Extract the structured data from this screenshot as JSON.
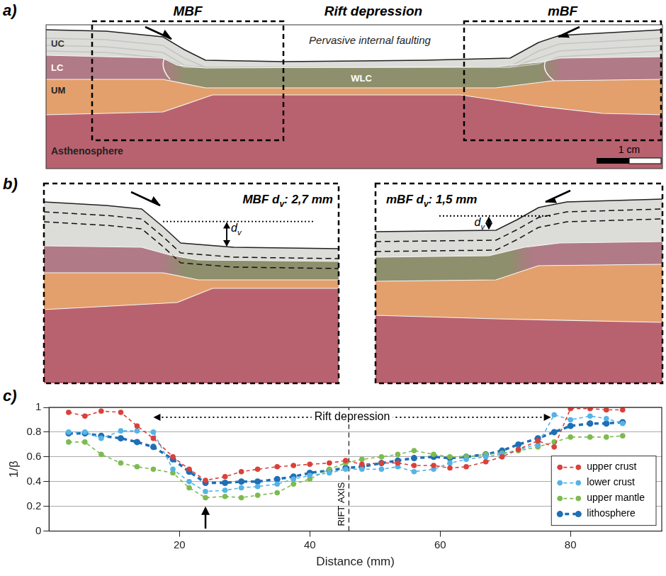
{
  "panel_a": {
    "label": "a)",
    "headers": [
      "MBF",
      "Rift depression",
      "mBF"
    ],
    "layers": {
      "upper_crust": "UC",
      "lower_crust": "LC",
      "upper_mantle": "UM",
      "weak_lower_crust": "WLC",
      "asthenosphere": "Asthenosphere"
    },
    "annotation": "Pervasive internal faulting",
    "scale_bar": "1 cm"
  },
  "panel_b": {
    "label": "b)",
    "insets": [
      {
        "title": [
          "MBF d",
          "v",
          ": 2,7 mm"
        ],
        "d_v": 2.7
      },
      {
        "title": [
          "mBF d",
          "v",
          ": 1,5 mm"
        ],
        "d_v": 1.5
      }
    ],
    "measure_label": [
      "d",
      "v"
    ]
  },
  "chart_data": {
    "type": "line",
    "panel_label": "c)",
    "x_label": "Distance (mm)",
    "y_label": "1/β",
    "xlim": [
      0,
      94
    ],
    "xticks": [
      20,
      40,
      60,
      80
    ],
    "ylim": [
      0,
      1
    ],
    "yticks": [
      0,
      0.2,
      0.4,
      0.6,
      0.8,
      1
    ],
    "grid": "y",
    "legend": "lower right",
    "marker": "circle",
    "line_style": "dashed",
    "x": [
      3,
      5.5,
      8,
      11,
      13.5,
      16,
      19,
      21.5,
      24,
      27,
      29.5,
      32,
      35,
      37.5,
      40,
      43,
      45.5,
      48,
      51,
      53.5,
      56,
      59,
      61.5,
      64,
      67,
      69.5,
      72,
      75,
      77.5,
      80,
      83,
      85.5,
      88
    ],
    "series": [
      {
        "name": "upper crust",
        "color": "#d9413a",
        "values": [
          0.96,
          0.93,
          0.97,
          0.96,
          0.85,
          0.75,
          0.6,
          0.5,
          0.41,
          0.44,
          0.48,
          0.5,
          0.52,
          0.53,
          0.54,
          0.55,
          0.57,
          0.54,
          0.55,
          0.55,
          0.53,
          0.53,
          0.51,
          0.52,
          0.56,
          0.6,
          0.66,
          0.73,
          0.68,
          0.99,
          0.99,
          0.98,
          0.98
        ]
      },
      {
        "name": "lower crust",
        "color": "#55b3e6",
        "values": [
          0.8,
          0.8,
          0.75,
          0.81,
          0.81,
          0.8,
          0.5,
          0.4,
          0.32,
          0.33,
          0.35,
          0.36,
          0.38,
          0.42,
          0.45,
          0.47,
          0.5,
          0.5,
          0.5,
          0.52,
          0.48,
          0.5,
          0.55,
          0.58,
          0.6,
          0.62,
          0.66,
          0.7,
          0.94,
          0.9,
          0.93,
          0.91,
          0.87
        ]
      },
      {
        "name": "upper mantle",
        "color": "#7dbb50",
        "values": [
          0.72,
          0.72,
          0.62,
          0.55,
          0.52,
          0.5,
          0.47,
          0.35,
          0.27,
          0.28,
          0.27,
          0.29,
          0.31,
          0.38,
          0.42,
          0.5,
          0.55,
          0.58,
          0.6,
          0.62,
          0.65,
          0.62,
          0.6,
          0.6,
          0.62,
          0.63,
          0.65,
          0.68,
          0.72,
          0.76,
          0.76,
          0.76,
          0.77
        ]
      },
      {
        "name": "lithosphere",
        "color": "#1f6fb5",
        "values": [
          0.79,
          0.79,
          0.77,
          0.75,
          0.72,
          0.68,
          0.58,
          0.48,
          0.39,
          0.39,
          0.4,
          0.4,
          0.42,
          0.44,
          0.47,
          0.49,
          0.51,
          0.52,
          0.55,
          0.57,
          0.59,
          0.6,
          0.59,
          0.6,
          0.62,
          0.65,
          0.7,
          0.75,
          0.8,
          0.85,
          0.87,
          0.87,
          0.88
        ]
      }
    ],
    "annotations": [
      {
        "text": "Rift depression",
        "x": [
          16,
          77
        ],
        "y": 0.92
      },
      {
        "text": "RIFT AXIS",
        "x": 46
      },
      {
        "arrow": "up",
        "x": 24,
        "y": [
          0.02,
          0.2
        ]
      }
    ]
  }
}
